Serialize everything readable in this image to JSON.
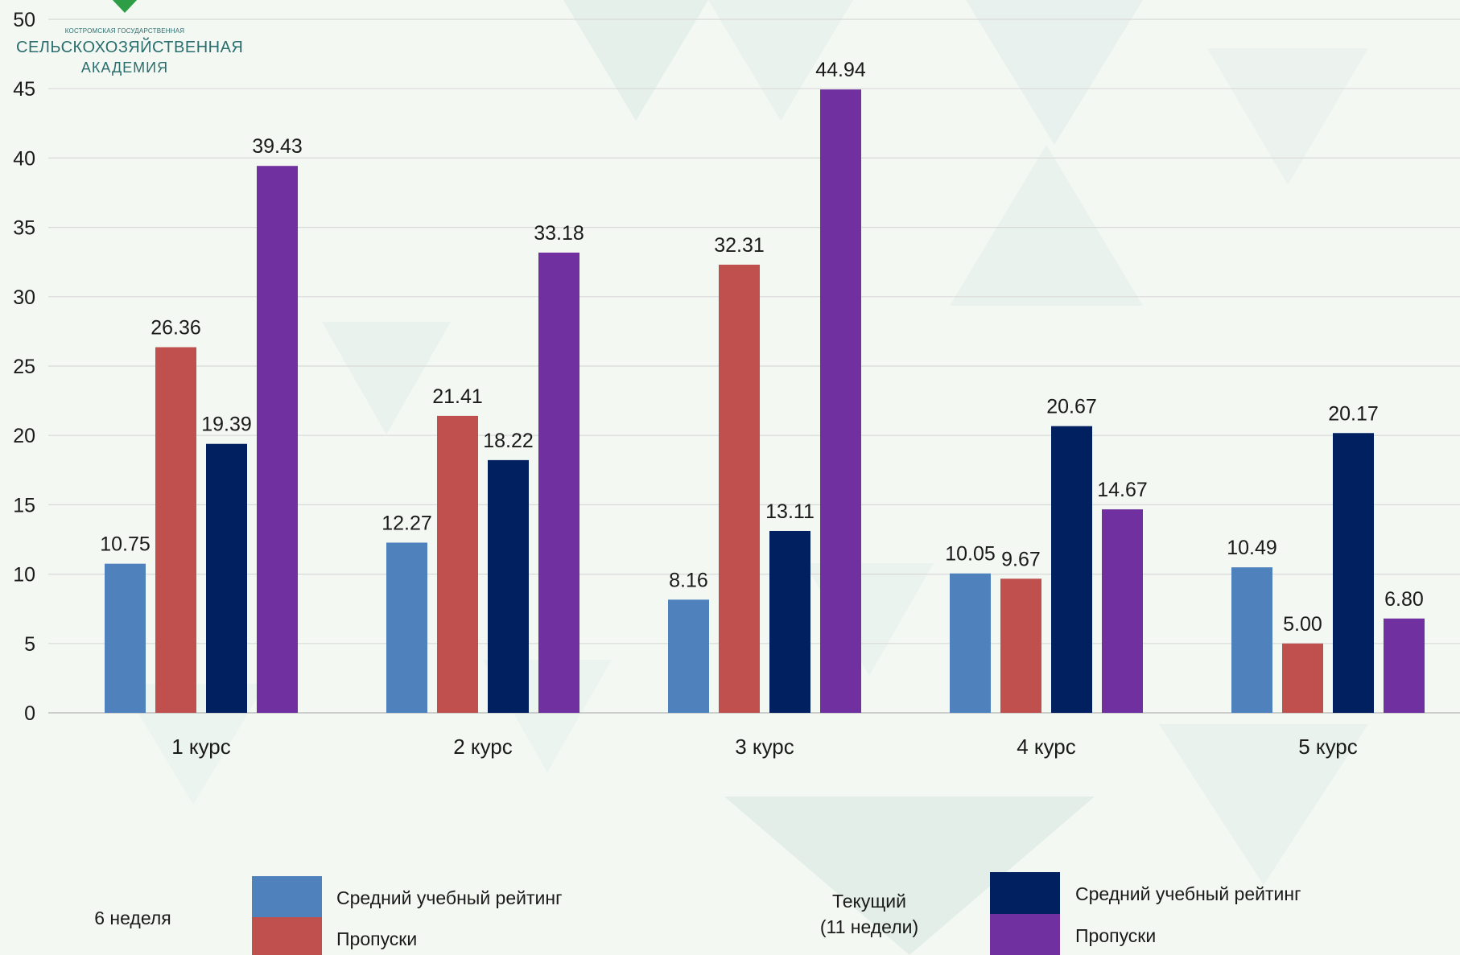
{
  "logo": {
    "line_small": "КОСТРОМСКАЯ ГОСУДАРСТВЕННАЯ",
    "line_main": "СЕЛЬСКОХОЗЯЙСТВЕННАЯ",
    "line_sub": "АКАДЕМИЯ",
    "color": "#2a6e6e"
  },
  "chart_data": {
    "type": "bar",
    "title": "",
    "xlabel": "",
    "ylabel": "",
    "ylim": [
      0,
      50
    ],
    "yticks": [
      0,
      5,
      10,
      15,
      20,
      25,
      30,
      35,
      40,
      45,
      50
    ],
    "grid": true,
    "categories": [
      "1 курс",
      "2 курс",
      "3 курс",
      "4 курс",
      "5 курс"
    ],
    "series": [
      {
        "name": "Средний учебный рейтинг",
        "group": "6 неделя",
        "color": "#4f81bd",
        "values": [
          10.75,
          12.27,
          8.16,
          10.05,
          10.49
        ]
      },
      {
        "name": "Пропуски",
        "group": "6 неделя",
        "color": "#c0504d",
        "values": [
          26.36,
          21.41,
          32.31,
          9.67,
          5.0
        ]
      },
      {
        "name": "Средний учебный рейтинг",
        "group": "Текущий (11 неделя)",
        "color": "#002060",
        "values": [
          19.39,
          18.22,
          13.11,
          20.67,
          20.17
        ]
      },
      {
        "name": "Пропуски",
        "group": "Текущий (11 неделя)",
        "color": "#7030a0",
        "values": [
          39.43,
          33.18,
          44.94,
          14.67,
          6.8
        ]
      }
    ],
    "legend": {
      "placement": "bottom",
      "group1_label": "6 неделя",
      "group2_label_line1": "Текущий",
      "group2_label_line2": "(11 недели)",
      "item_rating": "Средний учебный рейтинг",
      "item_absences": "Пропуски"
    }
  }
}
